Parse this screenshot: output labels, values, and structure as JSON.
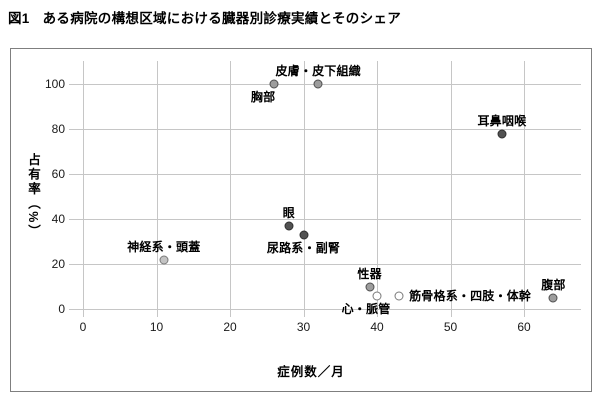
{
  "figure_title": {
    "number": "図1",
    "text": "ある病院の構想区域における臓器別診療実績とそのシェア"
  },
  "chart_data": {
    "type": "scatter",
    "title": "図1 ある病院の構想区域における臓器別診療実績とそのシェア",
    "xlabel": "症例数／月",
    "ylabel": "占有率（%）",
    "xlim": [
      0,
      67
    ],
    "ylim": [
      0,
      110
    ],
    "x_ticks": [
      0,
      10,
      20,
      30,
      40,
      50,
      60
    ],
    "y_ticks": [
      0,
      20,
      40,
      60,
      80,
      100
    ],
    "grid": "on",
    "legend": "none",
    "points": [
      {
        "label": "神経系・頭蓋",
        "x": 11,
        "y": 22,
        "fill": "#c3c3c3",
        "stroke": "#7a7a7a",
        "label_pos": "above"
      },
      {
        "label": "胸部",
        "x": 26,
        "y": 100,
        "fill": "#9d9d9d",
        "stroke": "#4f4f4f",
        "label_pos": "below-left"
      },
      {
        "label": "皮膚・皮下組織",
        "x": 32,
        "y": 100,
        "fill": "#9d9d9d",
        "stroke": "#4f4f4f",
        "label_pos": "above"
      },
      {
        "label": "眼",
        "x": 28,
        "y": 37,
        "fill": "#525252",
        "stroke": "#303030",
        "label_pos": "above"
      },
      {
        "label": "尿路系・副腎",
        "x": 30,
        "y": 33,
        "fill": "#525252",
        "stroke": "#303030",
        "label_pos": "below"
      },
      {
        "label": "耳鼻咽喉",
        "x": 57,
        "y": 78,
        "fill": "#525252",
        "stroke": "#303030",
        "label_pos": "above"
      },
      {
        "label": "性器",
        "x": 39,
        "y": 10,
        "fill": "#9d9d9d",
        "stroke": "#4f4f4f",
        "label_pos": "above"
      },
      {
        "label": "心・脈管",
        "x": 40,
        "y": 6,
        "fill": "#ffffff",
        "stroke": "#7a7a7a",
        "label_pos": "below-left"
      },
      {
        "label": "筋骨格系・四肢・体幹",
        "x": 43,
        "y": 6,
        "fill": "#ffffff",
        "stroke": "#7a7a7a",
        "label_pos": "right"
      },
      {
        "label": "腹部",
        "x": 64,
        "y": 5,
        "fill": "#9d9d9d",
        "stroke": "#4f4f4f",
        "label_pos": "above"
      }
    ],
    "colors": {
      "grid": "#c6c6c6",
      "frame": "#7f7f7f",
      "text": "#000000",
      "marker_dark": "#525252",
      "marker_mid": "#9d9d9d",
      "marker_light": "#c3c3c3",
      "marker_open": "#ffffff"
    }
  }
}
